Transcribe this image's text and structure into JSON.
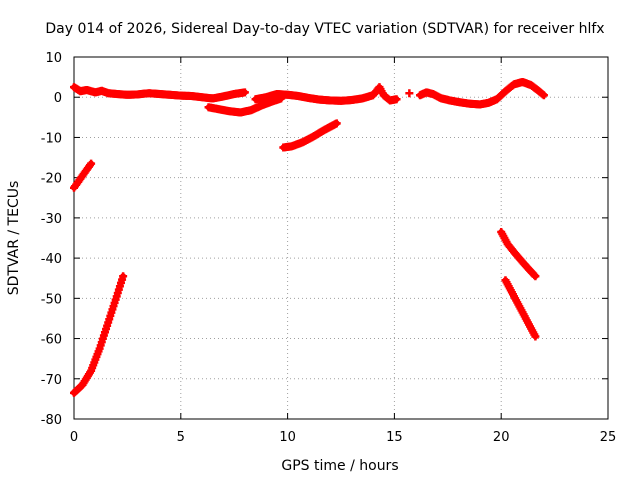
{
  "chart_data": {
    "type": "scatter",
    "title": "Day 014 of 2026, Sidereal Day-to-day VTEC variation (SDTVAR) for receiver hlfx",
    "xlabel": "GPS time / hours",
    "ylabel": "SDTVAR / TECUs",
    "xlim": [
      0,
      25
    ],
    "ylim": [
      -80,
      10
    ],
    "xticks": [
      0,
      5,
      10,
      15,
      20,
      25
    ],
    "yticks": [
      -80,
      -70,
      -60,
      -50,
      -40,
      -30,
      -20,
      -10,
      0,
      10
    ],
    "grid": true,
    "legend": "none",
    "marker": "plus",
    "series_color": "#ff0000",
    "series": [
      {
        "x": [
          0.0,
          0.3,
          0.6,
          1.0,
          1.3,
          1.6,
          2.0,
          2.5,
          3.0,
          3.5,
          4.0,
          4.5,
          5.0,
          5.5,
          6.0,
          6.5,
          7.0,
          7.5,
          8.0
        ],
        "y": [
          2.5,
          1.5,
          1.8,
          1.2,
          1.6,
          1.0,
          0.8,
          0.6,
          0.7,
          1.0,
          0.8,
          0.6,
          0.4,
          0.3,
          0.0,
          -0.3,
          0.2,
          0.8,
          1.2
        ]
      },
      {
        "x": [
          6.3,
          6.8,
          7.3,
          7.8,
          8.3,
          8.8,
          9.3,
          9.7
        ],
        "y": [
          -2.5,
          -3.0,
          -3.5,
          -3.8,
          -3.2,
          -2.0,
          -1.0,
          -0.3
        ]
      },
      {
        "x": [
          8.5,
          9.0,
          9.5,
          10.0,
          10.5,
          11.0,
          11.5,
          12.0,
          12.5,
          13.0,
          13.5,
          14.0,
          14.3,
          14.5,
          14.8,
          15.1
        ],
        "y": [
          -0.5,
          0.0,
          0.8,
          0.6,
          0.3,
          -0.2,
          -0.6,
          -0.8,
          -0.9,
          -0.7,
          -0.3,
          0.5,
          2.5,
          0.5,
          -0.8,
          -0.5
        ]
      },
      {
        "x": [
          15.7
        ],
        "y": [
          1.0
        ]
      },
      {
        "x": [
          16.2,
          16.5,
          16.8,
          17.2,
          17.6,
          18.0,
          18.5,
          19.0,
          19.4,
          19.8,
          20.2,
          20.6,
          21.0,
          21.4,
          21.7,
          22.0
        ],
        "y": [
          0.5,
          1.2,
          0.8,
          -0.3,
          -0.8,
          -1.2,
          -1.6,
          -1.8,
          -1.4,
          -0.5,
          1.5,
          3.2,
          3.8,
          3.0,
          1.8,
          0.5
        ]
      },
      {
        "x": [
          0.0,
          0.2,
          0.4,
          0.6,
          0.8
        ],
        "y": [
          -22.5,
          -21.0,
          -19.5,
          -18.0,
          -16.5
        ]
      },
      {
        "x": [
          0.0,
          0.4,
          0.8,
          1.2,
          1.6,
          2.0,
          2.3
        ],
        "y": [
          -73.5,
          -71.5,
          -68.0,
          -62.5,
          -56.0,
          -49.5,
          -44.5
        ]
      },
      {
        "x": [
          9.8,
          10.2,
          10.7,
          11.2,
          11.7,
          12.3
        ],
        "y": [
          -12.5,
          -12.2,
          -11.2,
          -9.8,
          -8.2,
          -6.5
        ]
      },
      {
        "x": [
          20.0,
          20.3,
          20.6,
          21.0,
          21.3,
          21.6
        ],
        "y": [
          -33.5,
          -36.5,
          -38.5,
          -41.0,
          -42.8,
          -44.5
        ]
      },
      {
        "x": [
          20.2,
          20.5,
          20.8,
          21.1,
          21.4,
          21.6
        ],
        "y": [
          -45.5,
          -48.5,
          -51.5,
          -54.5,
          -57.5,
          -59.5
        ]
      }
    ]
  }
}
